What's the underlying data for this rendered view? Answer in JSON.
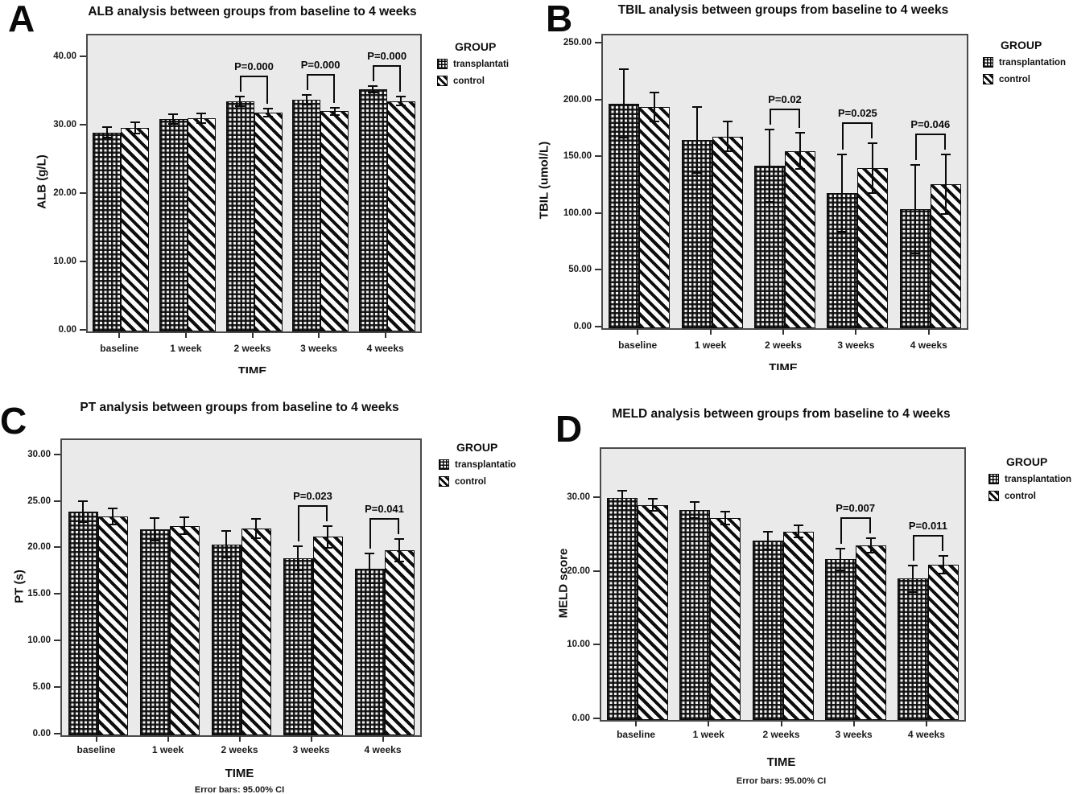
{
  "chart_data": [
    {
      "type": "bar",
      "panel_label": "A",
      "title": "ALB analysis between groups from baseline to 4 weeks",
      "xlabel": "TIME",
      "ylabel": "ALB (g/L)",
      "categories": [
        "baseline",
        "1 week",
        "2 weeks",
        "3 weeks",
        "4 weeks"
      ],
      "series": [
        {
          "name": "transplantation",
          "pattern": "grid",
          "values": [
            29.1,
            31.1,
            33.7,
            33.9,
            35.4
          ],
          "ci": [
            0.8,
            0.7,
            0.7,
            0.7,
            0.5
          ]
        },
        {
          "name": "control",
          "pattern": "diagonal",
          "values": [
            29.8,
            31.2,
            32.0,
            32.2,
            33.7
          ],
          "ci": [
            0.8,
            0.7,
            0.6,
            0.5,
            0.6
          ]
        }
      ],
      "p_annotations": [
        {
          "category": "2 weeks",
          "text": "P=0.000"
        },
        {
          "category": "3 weeks",
          "text": "P=0.000"
        },
        {
          "category": "4 weeks",
          "text": "P=0.000"
        }
      ],
      "ytick_labels": [
        "0.00",
        "10.00",
        "20.00",
        "30.00",
        "40.00"
      ],
      "ytick_values": [
        0,
        10,
        20,
        30,
        40
      ],
      "ylim": [
        0,
        43.3
      ],
      "grid": false,
      "legend_position": "right",
      "legend": {
        "title": "GROUP",
        "items": [
          {
            "label": "transplantati",
            "pattern": "grid"
          },
          {
            "label": "control",
            "pattern": "diagonal"
          }
        ]
      },
      "footnote": ""
    },
    {
      "type": "bar",
      "panel_label": "B",
      "title": "TBIL analysis between groups from baseline to 4 weeks",
      "xlabel": "TIME",
      "ylabel": "TBIL (umol/L)",
      "categories": [
        "baseline",
        "1 week",
        "2 weeks",
        "3 weeks",
        "4 weeks"
      ],
      "series": [
        {
          "name": "transplantation",
          "pattern": "grid",
          "values": [
            198,
            166,
            143,
            119,
            105
          ],
          "ci": [
            30,
            29,
            32,
            34,
            39
          ]
        },
        {
          "name": "control",
          "pattern": "diagonal",
          "values": [
            195,
            169,
            156,
            141,
            127
          ],
          "ci": [
            13,
            13,
            16,
            22,
            26
          ]
        }
      ],
      "p_annotations": [
        {
          "category": "2 weeks",
          "text": "P=0.02"
        },
        {
          "category": "3 weeks",
          "text": "P=0.025"
        },
        {
          "category": "4 weeks",
          "text": "P=0.046"
        }
      ],
      "ytick_labels": [
        "0.00",
        "50.00",
        "100.00",
        "150.00",
        "200.00",
        "250.00"
      ],
      "ytick_values": [
        0,
        50,
        100,
        150,
        200,
        250
      ],
      "ylim": [
        0,
        258
      ],
      "grid": false,
      "legend_position": "right",
      "legend": {
        "title": "GROUP",
        "items": [
          {
            "label": "transplantation",
            "pattern": "grid"
          },
          {
            "label": "control",
            "pattern": "diagonal"
          }
        ]
      },
      "footnote": ""
    },
    {
      "type": "bar",
      "panel_label": "C",
      "title": "PT analysis between groups from baseline to 4 weeks",
      "xlabel": "TIME",
      "ylabel": "PT (s)",
      "categories": [
        "baseline",
        "1 week",
        "2 weeks",
        "3 weeks",
        "4 weeks"
      ],
      "series": [
        {
          "name": "transplantation",
          "pattern": "grid",
          "values": [
            24.0,
            22.1,
            20.5,
            19.0,
            17.9
          ],
          "ci": [
            1.1,
            1.2,
            1.4,
            1.3,
            1.6
          ]
        },
        {
          "name": "control",
          "pattern": "diagonal",
          "values": [
            23.5,
            22.5,
            22.2,
            21.3,
            19.9
          ],
          "ci": [
            0.9,
            0.9,
            1.0,
            1.2,
            1.2
          ]
        }
      ],
      "p_annotations": [
        {
          "category": "3 weeks",
          "text": "P=0.023"
        },
        {
          "category": "4 weeks",
          "text": "P=0.041"
        }
      ],
      "ytick_labels": [
        "0.00",
        "5.00",
        "10.00",
        "15.00",
        "20.00",
        "25.00",
        "30.00"
      ],
      "ytick_values": [
        0,
        5,
        10,
        15,
        20,
        25,
        30
      ],
      "ylim": [
        0,
        31.7
      ],
      "grid": false,
      "legend_position": "right",
      "legend": {
        "title": "GROUP",
        "items": [
          {
            "label": "transplantatio",
            "pattern": "grid"
          },
          {
            "label": "control",
            "pattern": "diagonal"
          }
        ]
      },
      "footnote": "Error bars: 95.00% CI"
    },
    {
      "type": "bar",
      "panel_label": "D",
      "title": "MELD analysis between groups from baseline to 4 weeks",
      "xlabel": "TIME",
      "ylabel": "MELD score",
      "categories": [
        "baseline",
        "1 week",
        "2 weeks",
        "3 weeks",
        "4 weeks"
      ],
      "series": [
        {
          "name": "transplantation",
          "pattern": "grid",
          "values": [
            30.1,
            28.5,
            24.4,
            21.8,
            19.2
          ],
          "ci": [
            1.0,
            1.1,
            1.2,
            1.5,
            1.8
          ]
        },
        {
          "name": "control",
          "pattern": "diagonal",
          "values": [
            29.2,
            27.4,
            25.6,
            23.7,
            21.1
          ],
          "ci": [
            0.8,
            0.9,
            0.8,
            1.0,
            1.2
          ]
        }
      ],
      "p_annotations": [
        {
          "category": "3 weeks",
          "text": "P=0.007"
        },
        {
          "category": "4 weeks",
          "text": "P=0.011"
        }
      ],
      "ytick_labels": [
        "0.00",
        "10.00",
        "20.00",
        "30.00"
      ],
      "ytick_values": [
        0,
        10,
        20,
        30
      ],
      "ylim": [
        0,
        36.8
      ],
      "grid": false,
      "legend_position": "right",
      "legend": {
        "title": "GROUP",
        "items": [
          {
            "label": "transplantation",
            "pattern": "grid"
          },
          {
            "label": "control",
            "pattern": "diagonal"
          }
        ]
      },
      "footnote": "Error bars: 95.00% CI"
    }
  ]
}
